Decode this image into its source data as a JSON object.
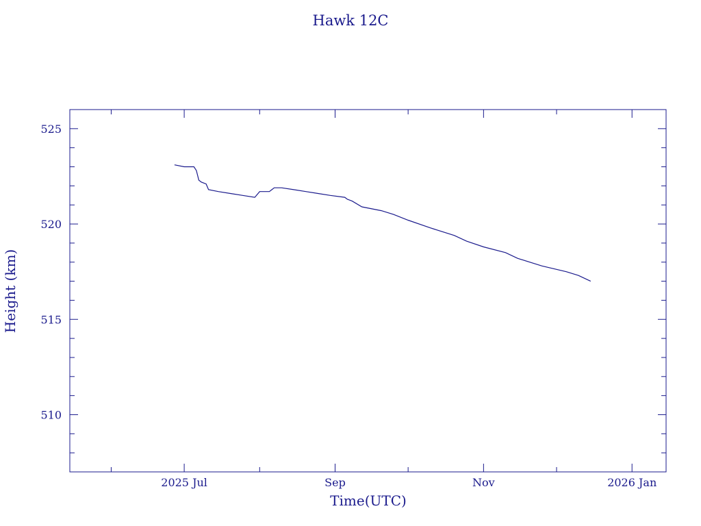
{
  "chart_data": {
    "type": "line",
    "title": "Hawk 12C",
    "xlabel": "Time(UTC)",
    "ylabel": "Height (km)",
    "xlim": [
      "2025-05-15",
      "2026-01-15"
    ],
    "ylim": [
      507,
      526
    ],
    "x_ticks": [
      {
        "date": "2025-07-01",
        "label": "2025 Jul"
      },
      {
        "date": "2025-09-01",
        "label": "Sep"
      },
      {
        "date": "2025-11-01",
        "label": "Nov"
      },
      {
        "date": "2026-01-01",
        "label": "2026 Jan"
      }
    ],
    "y_ticks": [
      510,
      515,
      520,
      525
    ],
    "grid": false,
    "series": [
      {
        "color": "#1a1a8c",
        "x": [
          "2025-06-27",
          "2025-07-01",
          "2025-07-05",
          "2025-07-06",
          "2025-07-07",
          "2025-07-08",
          "2025-07-10",
          "2025-07-11",
          "2025-07-15",
          "2025-07-20",
          "2025-07-25",
          "2025-07-30",
          "2025-08-01",
          "2025-08-02",
          "2025-08-05",
          "2025-08-06",
          "2025-08-07",
          "2025-08-10",
          "2025-08-15",
          "2025-08-20",
          "2025-08-25",
          "2025-08-30",
          "2025-09-05",
          "2025-09-06",
          "2025-09-08",
          "2025-09-12",
          "2025-09-20",
          "2025-09-25",
          "2025-10-01",
          "2025-10-10",
          "2025-10-20",
          "2025-10-25",
          "2025-11-01",
          "2025-11-10",
          "2025-11-15",
          "2025-11-25",
          "2025-12-05",
          "2025-12-10",
          "2025-12-15"
        ],
        "y": [
          523.1,
          523.0,
          523.0,
          522.8,
          522.3,
          522.2,
          522.1,
          521.8,
          521.7,
          521.6,
          521.5,
          521.4,
          521.7,
          521.7,
          521.7,
          521.8,
          521.9,
          521.9,
          521.8,
          521.7,
          521.6,
          521.5,
          521.4,
          521.3,
          521.2,
          520.9,
          520.7,
          520.5,
          520.2,
          519.8,
          519.4,
          519.1,
          518.8,
          518.5,
          518.2,
          517.8,
          517.5,
          517.3,
          517.0
        ]
      }
    ]
  }
}
